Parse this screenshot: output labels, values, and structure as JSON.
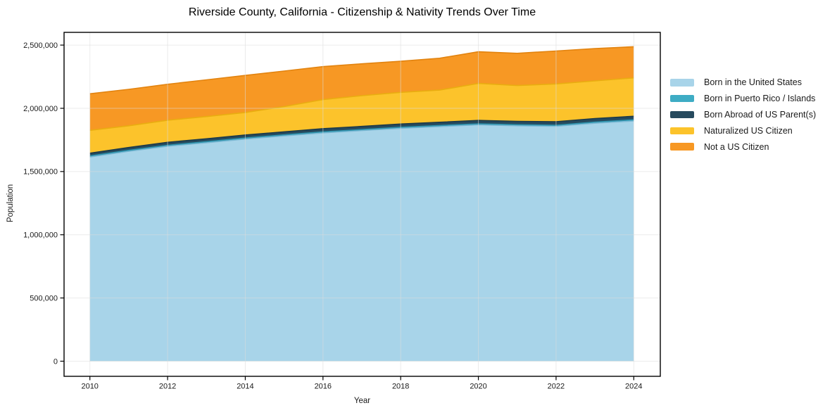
{
  "page": {
    "background_color": "#ffffff",
    "text_color": "#1a1a1a"
  },
  "chart_data": {
    "type": "area",
    "stacked": true,
    "title": "Riverside County, California - Citizenship & Nativity Trends Over Time",
    "xlabel": "Year",
    "ylabel": "Population",
    "x": [
      2010,
      2011,
      2012,
      2013,
      2014,
      2015,
      2016,
      2017,
      2018,
      2019,
      2020,
      2021,
      2022,
      2023,
      2024
    ],
    "series": [
      {
        "name": "Born in the United States",
        "color": "#a8d4e9",
        "edge_color": "#7db9d5",
        "values": [
          1615000,
          1660000,
          1700000,
          1728000,
          1757000,
          1782000,
          1806000,
          1824000,
          1842000,
          1856000,
          1869000,
          1862000,
          1858000,
          1882000,
          1900000
        ]
      },
      {
        "name": "Born in Puerto Rico / Islands",
        "color": "#3eacc4",
        "edge_color": "#2e93ad",
        "values": [
          8000,
          8000,
          8000,
          8000,
          8000,
          8000,
          8000,
          8000,
          8000,
          8000,
          8000,
          8000,
          8000,
          9000,
          9000
        ]
      },
      {
        "name": "Born Abroad of US Parent(s)",
        "color": "#264a5e",
        "edge_color": "#1c3949",
        "values": [
          22000,
          22000,
          23000,
          23000,
          24000,
          24000,
          25000,
          25000,
          26000,
          26000,
          27000,
          27000,
          28000,
          28000,
          28000
        ]
      },
      {
        "name": "Naturalized US Citizen",
        "color": "#fcc32b",
        "edge_color": "#e9ad10",
        "values": [
          181000,
          172000,
          175000,
          176000,
          178000,
          200000,
          230000,
          243000,
          250000,
          254000,
          293000,
          283000,
          299000,
          298000,
          304000
        ]
      },
      {
        "name": "Not a US Citizen",
        "color": "#f79824",
        "edge_color": "#e2830f",
        "values": [
          289000,
          288000,
          284000,
          290000,
          293000,
          281000,
          261000,
          252000,
          246000,
          252000,
          250000,
          255000,
          260000,
          255000,
          246000
        ]
      }
    ],
    "x_ticks": [
      {
        "label": "2010",
        "value": 2010
      },
      {
        "label": "2012",
        "value": 2012
      },
      {
        "label": "2014",
        "value": 2014
      },
      {
        "label": "2016",
        "value": 2016
      },
      {
        "label": "2018",
        "value": 2018
      },
      {
        "label": "2020",
        "value": 2020
      },
      {
        "label": "2022",
        "value": 2022
      },
      {
        "label": "2024",
        "value": 2024
      }
    ],
    "y_ticks": [
      {
        "label": "0",
        "value": 0
      },
      {
        "label": "500,000",
        "value": 500000
      },
      {
        "label": "1,000,000",
        "value": 1000000
      },
      {
        "label": "1,500,000",
        "value": 1500000
      },
      {
        "label": "2,000,000",
        "value": 2000000
      },
      {
        "label": "2,500,000",
        "value": 2500000
      }
    ],
    "xlim": [
      2010,
      2024
    ],
    "ylim": [
      0,
      2500000
    ],
    "grid": true,
    "grid_color": "#dcdcdc",
    "frame_color": "#000000",
    "legend_position": "right-outside"
  }
}
